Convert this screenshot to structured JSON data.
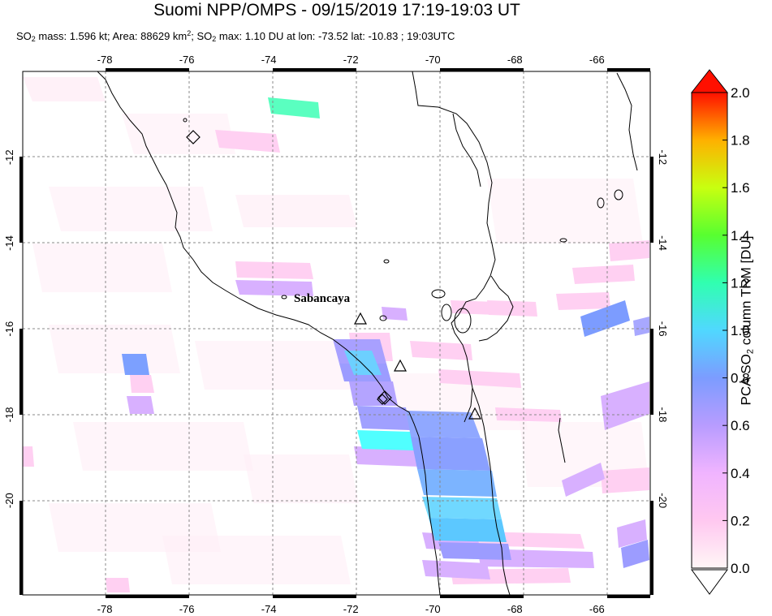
{
  "header": {
    "title": "Suomi NPP/OMPS - 09/15/2019 17:19-19:03 UT",
    "subtitle_parts": [
      "SO",
      "2",
      " mass: 1.596 kt; Area: 88629 km",
      "2",
      "; SO",
      "2",
      " max: 1.10 DU at lon: -73.52 lat: -10.83 ; 19:03UTC"
    ]
  },
  "colorbar": {
    "title_parts": [
      "PCA SO",
      "2",
      " column TRM [DU]"
    ],
    "range": [
      0.0,
      2.0
    ],
    "tick_labels": [
      "0.0",
      "0.2",
      "0.4",
      "0.6",
      "0.8",
      "1.0",
      "1.2",
      "1.4",
      "1.6",
      "1.8",
      "2.0"
    ],
    "colors": [
      "#fff6f6",
      "#ffc8f0",
      "#d8a8ff",
      "#8c96ff",
      "#50c8ff",
      "#5affff",
      "#28ff80",
      "#7cff28",
      "#dcff00",
      "#ffc000",
      "#ff4000",
      "#ff0000"
    ]
  },
  "volcano_label": "Sabancaya",
  "chart_data": {
    "type": "heatmap",
    "title": "Suomi NPP/OMPS - 09/15/2019 17:19-19:03 UT",
    "xlabel": "",
    "ylabel": "",
    "xlim": [
      -80.0,
      -64.7
    ],
    "ylim": [
      -22.2,
      -10.0
    ],
    "x_ticks": [
      -78,
      -76,
      -74,
      -72,
      -70,
      -68,
      -66
    ],
    "y_ticks": [
      -12,
      -14,
      -16,
      -18,
      -20
    ],
    "x_tick_labels": [
      "-78",
      "-76",
      "-74",
      "-72",
      "-70",
      "-68",
      "-66"
    ],
    "y_tick_labels": [
      "-12",
      "-14",
      "-16",
      "-18",
      "-20"
    ],
    "grid": true,
    "colorbar_label": "PCA SO2 column TRM [DU]",
    "colorbar_range": [
      0.0,
      2.0
    ],
    "so2_mass_kt": 1.596,
    "area_km2": 88629,
    "so2_max_du": 1.1,
    "so2_max_lon": -73.52,
    "so2_max_lat": -10.83,
    "so2_max_time": "19:03UTC",
    "volcanoes": [
      {
        "name": "Sabancaya",
        "lon": -71.85,
        "lat": -15.78
      },
      {
        "name": "",
        "lon": -70.9,
        "lat": -16.35
      },
      {
        "name": "",
        "lon": -69.1,
        "lat": -18.4
      }
    ],
    "diamond_markers": [
      {
        "lon": -76.05,
        "lat": -11.55
      },
      {
        "lon": -71.35,
        "lat": -17.65
      }
    ],
    "pixels": [
      {
        "lon": -73.52,
        "lat": -10.83,
        "value": 1.1
      },
      {
        "lon": -72.0,
        "lat": -16.6,
        "value": 0.6
      },
      {
        "lon": -71.8,
        "lat": -17.4,
        "value": 0.95
      },
      {
        "lon": -71.6,
        "lat": -18.6,
        "value": 1.05
      },
      {
        "lon": -71.5,
        "lat": -19.2,
        "value": 0.55
      },
      {
        "lon": -70.6,
        "lat": -19.0,
        "value": 0.65
      },
      {
        "lon": -70.2,
        "lat": -20.6,
        "value": 0.9
      },
      {
        "lon": -69.6,
        "lat": -21.5,
        "value": 0.6
      },
      {
        "lon": -69.2,
        "lat": -21.9,
        "value": 0.45
      },
      {
        "lon": -65.7,
        "lat": -15.8,
        "value": 0.7
      },
      {
        "lon": -77.6,
        "lat": -17.2,
        "value": 0.75
      },
      {
        "lon": -73.0,
        "lat": -15.2,
        "value": 0.45
      },
      {
        "lon": -65.5,
        "lat": -21.2,
        "value": 0.55
      },
      {
        "lon": -66.5,
        "lat": -19.5,
        "value": 0.5
      },
      {
        "lon": -65.2,
        "lat": -18.3,
        "value": 0.4
      }
    ]
  }
}
